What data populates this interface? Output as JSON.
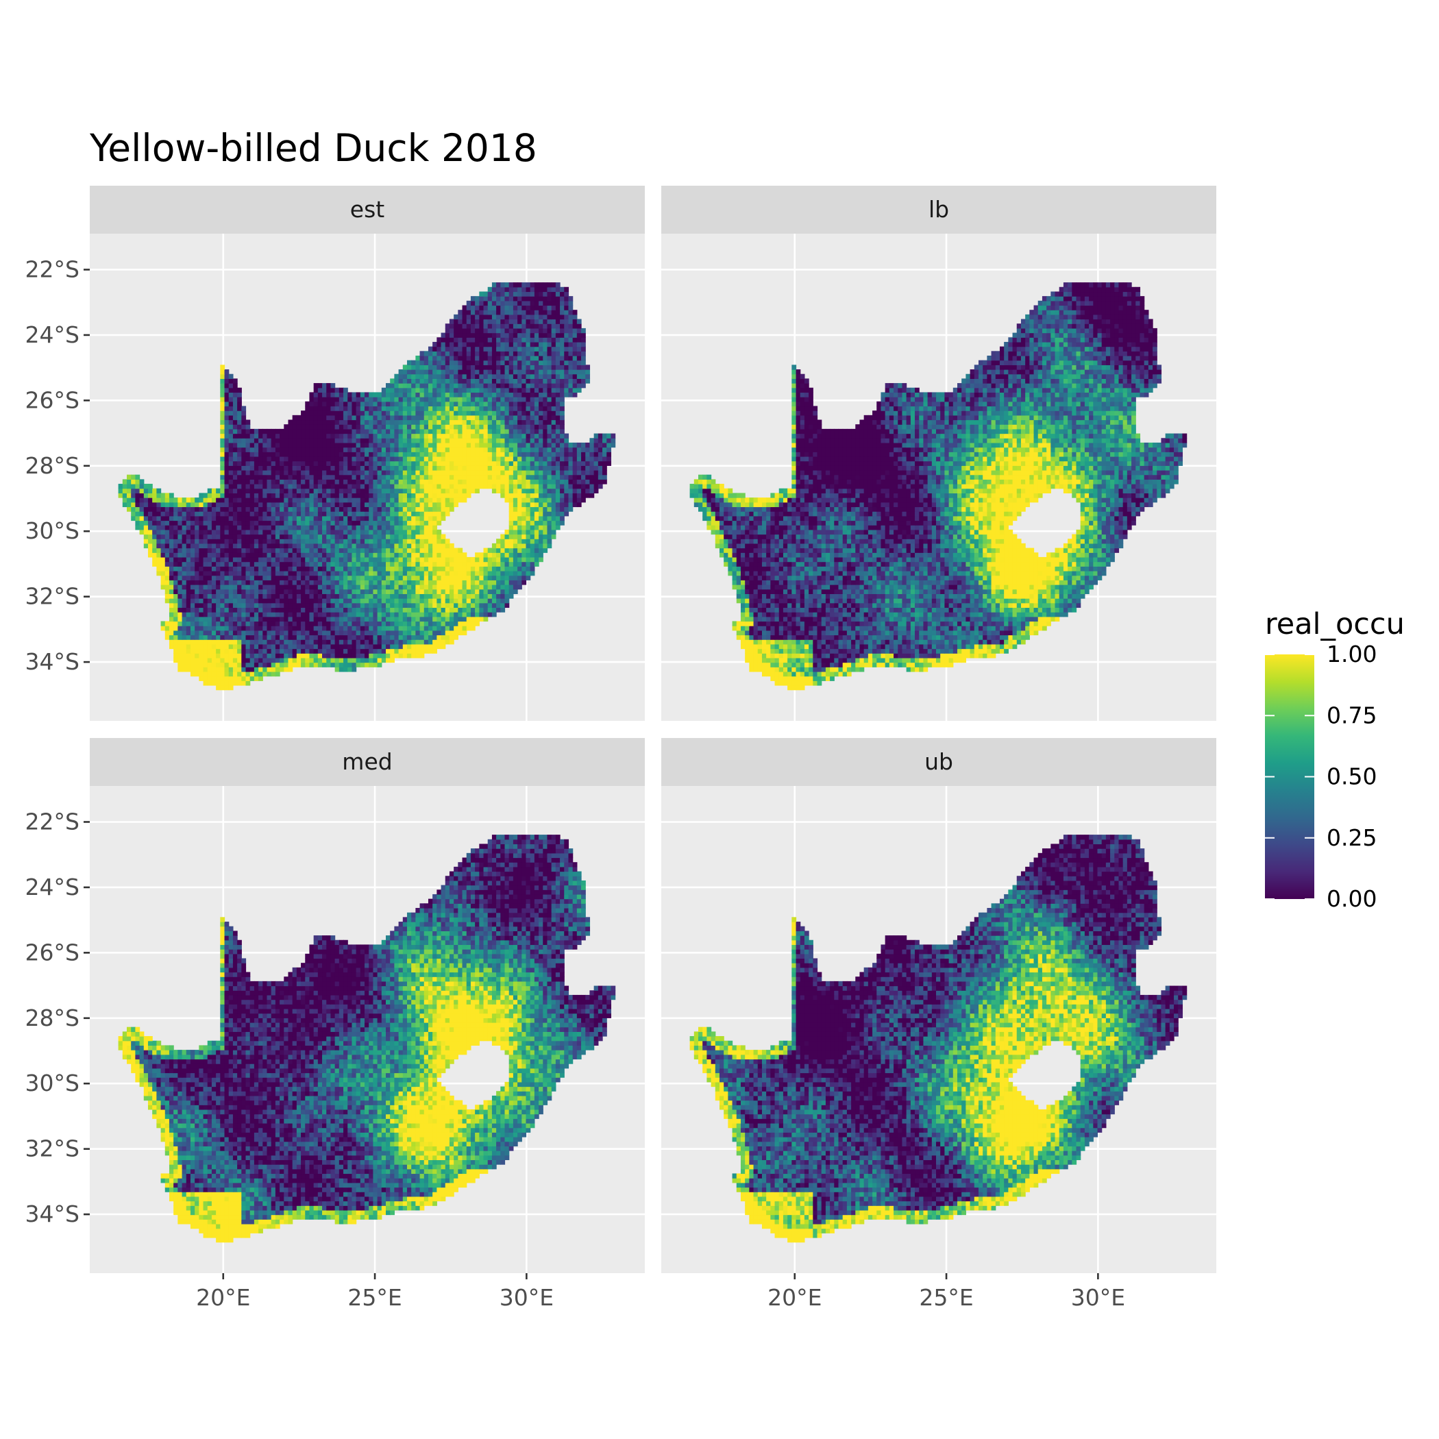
{
  "title": "Yellow-billed Duck 2018",
  "panels": [
    {
      "label": "est",
      "seed": 11
    },
    {
      "label": "lb",
      "seed": 23
    },
    {
      "label": "med",
      "seed": 37
    },
    {
      "label": "ub",
      "seed": 53
    }
  ],
  "axes": {
    "x_ticks": [
      {
        "value": 20,
        "label": "20°E"
      },
      {
        "value": 25,
        "label": "25°E"
      },
      {
        "value": 30,
        "label": "30°E"
      }
    ],
    "y_ticks": [
      {
        "value": -22,
        "label": "22°S"
      },
      {
        "value": -24,
        "label": "24°S"
      },
      {
        "value": -26,
        "label": "26°S"
      },
      {
        "value": -28,
        "label": "28°S"
      },
      {
        "value": -30,
        "label": "30°S"
      },
      {
        "value": -32,
        "label": "32°S"
      },
      {
        "value": -34,
        "label": "34°S"
      }
    ],
    "xlim": [
      15.6,
      33.9
    ],
    "ylim": [
      -35.8,
      -20.9
    ]
  },
  "legend": {
    "title": "real_occu",
    "range": [
      0,
      1
    ],
    "ticks": [
      {
        "value": 1.0,
        "label": "1.00"
      },
      {
        "value": 0.75,
        "label": "0.75"
      },
      {
        "value": 0.5,
        "label": "0.50"
      },
      {
        "value": 0.25,
        "label": "0.25"
      },
      {
        "value": 0.0,
        "label": "0.00"
      }
    ],
    "palette": "viridis"
  },
  "colors": {
    "panel_bg": "#ebebeb",
    "strip_bg": "#d9d9d9",
    "grid": "#ffffff",
    "viridis": [
      "#440154",
      "#482878",
      "#3e4989",
      "#31688e",
      "#26828e",
      "#1f9e89",
      "#35b779",
      "#6ece58",
      "#b5de2b",
      "#fde725"
    ]
  }
}
